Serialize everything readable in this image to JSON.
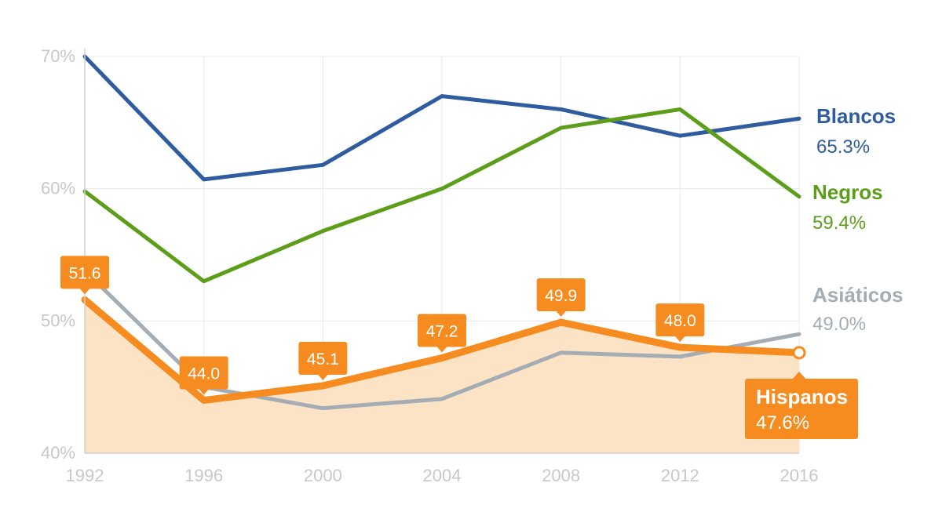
{
  "chart_data": {
    "type": "line",
    "title": "",
    "xlabel": "",
    "ylabel": "",
    "x": [
      1992,
      1996,
      2000,
      2004,
      2008,
      2012,
      2016
    ],
    "x_tick_labels": [
      "1992",
      "1996",
      "2000",
      "2004",
      "2008",
      "2012",
      "2016"
    ],
    "ylim": [
      40,
      70
    ],
    "y_ticks": [
      40,
      50,
      60,
      70
    ],
    "y_tick_labels": [
      "40%",
      "50%",
      "60%",
      "70%"
    ],
    "grid": true,
    "series": [
      {
        "name": "Blancos",
        "end_label": "65.3%",
        "color": "#2e5c9e",
        "values": [
          70.0,
          60.7,
          61.8,
          67.0,
          66.0,
          64.0,
          65.3
        ]
      },
      {
        "name": "Negros",
        "end_label": "59.4%",
        "color": "#5c9e1a",
        "values": [
          59.8,
          53.0,
          56.8,
          60.0,
          64.6,
          66.0,
          59.4
        ]
      },
      {
        "name": "Asiáticos",
        "end_label": "49.0%",
        "color": "#a4adb3",
        "values": [
          53.8,
          45.0,
          43.4,
          44.1,
          47.6,
          47.3,
          49.0
        ]
      },
      {
        "name": "Hispanos",
        "end_label": "47.6%",
        "color": "#f68b1f",
        "area_color": "#fce3c6",
        "highlighted": true,
        "values": [
          51.6,
          44.0,
          45.1,
          47.2,
          49.9,
          48.0,
          47.6
        ],
        "data_labels": [
          "51.6",
          "44.0",
          "45.1",
          "47.2",
          "49.9",
          "48.0"
        ]
      }
    ]
  }
}
